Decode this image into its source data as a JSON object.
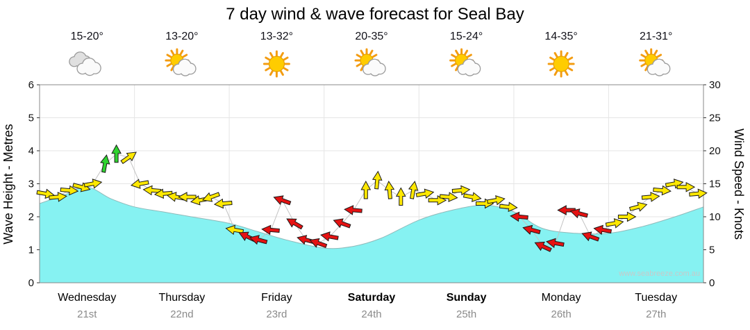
{
  "title": "7 day wind & wave forecast for Seal Bay",
  "watermark": "www.seabreeze.com.au",
  "left_axis": {
    "label": "Wave Height - Metres",
    "min": 0,
    "max": 6,
    "ticks": [
      0,
      1,
      2,
      3,
      4,
      5,
      6
    ]
  },
  "right_axis": {
    "label": "Wind Speed - Knots",
    "min": 0,
    "max": 30,
    "ticks": [
      0,
      5,
      10,
      15,
      20,
      25,
      30
    ]
  },
  "days": [
    {
      "name": "Wednesday",
      "date": "21st",
      "temp": "15-20°",
      "icon": "cloudy",
      "bold": false
    },
    {
      "name": "Thursday",
      "date": "22nd",
      "temp": "13-20°",
      "icon": "partly",
      "bold": false
    },
    {
      "name": "Friday",
      "date": "23rd",
      "temp": "13-32°",
      "icon": "sunny",
      "bold": false
    },
    {
      "name": "Saturday",
      "date": "24th",
      "temp": "20-35°",
      "icon": "partly",
      "bold": true
    },
    {
      "name": "Sunday",
      "date": "25th",
      "temp": "15-24°",
      "icon": "partly",
      "bold": true
    },
    {
      "name": "Monday",
      "date": "26th",
      "temp": "14-35°",
      "icon": "sunny",
      "bold": false
    },
    {
      "name": "Tuesday",
      "date": "27th",
      "temp": "21-31°",
      "icon": "partly",
      "bold": false
    }
  ],
  "chart_data": {
    "type": "area",
    "title": "7 day wind & wave forecast for Seal Bay",
    "x_axis": {
      "unit": "days",
      "range": [
        0,
        7
      ],
      "day_labels": [
        "Wednesday 21st",
        "Thursday 22nd",
        "Friday 23rd",
        "Saturday 24th",
        "Sunday 25th",
        "Monday 26th",
        "Tuesday 27th"
      ]
    },
    "wave_height_m": {
      "name": "Wave Height (metres)",
      "ylim": [
        0,
        6
      ],
      "x": [
        0,
        0.25,
        0.5,
        0.75,
        1,
        1.3,
        1.6,
        2,
        2.3,
        2.6,
        3,
        3.3,
        3.6,
        4,
        4.35,
        4.7,
        5,
        5.3,
        5.65,
        6,
        6.35,
        6.7,
        7
      ],
      "values": [
        2.4,
        2.65,
        2.9,
        2.55,
        2.3,
        2.15,
        2.0,
        1.8,
        1.55,
        1.3,
        1.05,
        1.1,
        1.35,
        1.9,
        2.2,
        2.35,
        2.15,
        1.65,
        1.5,
        1.5,
        1.7,
        2.0,
        2.3
      ]
    },
    "wind_knots": {
      "name": "Wind Speed (knots)",
      "ylim": [
        0,
        30
      ],
      "arrow_color_key": {
        "y": "yellow",
        "g": "green",
        "r": "red"
      },
      "arrows": [
        {
          "f": 0.06,
          "k": 13.5,
          "c": "y",
          "a": 10
        },
        {
          "f": 0.19,
          "k": 13,
          "c": "y",
          "a": -5
        },
        {
          "f": 0.31,
          "k": 14,
          "c": "y",
          "a": 5
        },
        {
          "f": 0.44,
          "k": 14.5,
          "c": "y",
          "a": 15
        },
        {
          "f": 0.56,
          "k": 15,
          "c": "y",
          "a": -10
        },
        {
          "f": 0.69,
          "k": 18,
          "c": "g",
          "a": -80
        },
        {
          "f": 0.81,
          "k": 19.5,
          "c": "g",
          "a": -90
        },
        {
          "f": 0.94,
          "k": 19,
          "c": "y",
          "a": -35
        },
        {
          "f": 1.06,
          "k": 15,
          "c": "y",
          "a": 170
        },
        {
          "f": 1.19,
          "k": 14,
          "c": "y",
          "a": 185
        },
        {
          "f": 1.31,
          "k": 13.5,
          "c": "y",
          "a": 175
        },
        {
          "f": 1.44,
          "k": 13,
          "c": "y",
          "a": 190
        },
        {
          "f": 1.56,
          "k": 13,
          "c": "y",
          "a": 180
        },
        {
          "f": 1.69,
          "k": 12.5,
          "c": "y",
          "a": 170
        },
        {
          "f": 1.81,
          "k": 13,
          "c": "y",
          "a": 160
        },
        {
          "f": 1.94,
          "k": 12,
          "c": "y",
          "a": 175
        },
        {
          "f": 2.06,
          "k": 8,
          "c": "y",
          "a": 190
        },
        {
          "f": 2.19,
          "k": 7,
          "c": "r",
          "a": 205
        },
        {
          "f": 2.31,
          "k": 6.5,
          "c": "r",
          "a": 195
        },
        {
          "f": 2.44,
          "k": 8,
          "c": "r",
          "a": 185
        },
        {
          "f": 2.56,
          "k": 12.5,
          "c": "r",
          "a": 200
        },
        {
          "f": 2.69,
          "k": 9,
          "c": "r",
          "a": 210
        },
        {
          "f": 2.81,
          "k": 6.5,
          "c": "r",
          "a": 195
        },
        {
          "f": 2.94,
          "k": 6,
          "c": "r",
          "a": 200
        },
        {
          "f": 3.06,
          "k": 7,
          "c": "r",
          "a": 190
        },
        {
          "f": 3.19,
          "k": 9,
          "c": "r",
          "a": 200
        },
        {
          "f": 3.31,
          "k": 11,
          "c": "r",
          "a": 185
        },
        {
          "f": 3.44,
          "k": 14,
          "c": "y",
          "a": -90
        },
        {
          "f": 3.56,
          "k": 15.5,
          "c": "y",
          "a": -85
        },
        {
          "f": 3.69,
          "k": 14,
          "c": "y",
          "a": -95
        },
        {
          "f": 3.81,
          "k": 13,
          "c": "y",
          "a": -90
        },
        {
          "f": 3.94,
          "k": 14,
          "c": "y",
          "a": -80
        },
        {
          "f": 4.06,
          "k": 13.5,
          "c": "y",
          "a": -10
        },
        {
          "f": 4.19,
          "k": 12.5,
          "c": "y",
          "a": 0
        },
        {
          "f": 4.31,
          "k": 13,
          "c": "y",
          "a": 5
        },
        {
          "f": 4.44,
          "k": 14,
          "c": "y",
          "a": -5
        },
        {
          "f": 4.56,
          "k": 13,
          "c": "y",
          "a": 10
        },
        {
          "f": 4.69,
          "k": 12,
          "c": "y",
          "a": 0
        },
        {
          "f": 4.81,
          "k": 12.5,
          "c": "y",
          "a": -10
        },
        {
          "f": 4.94,
          "k": 11.5,
          "c": "y",
          "a": 5
        },
        {
          "f": 5.06,
          "k": 10,
          "c": "r",
          "a": 185
        },
        {
          "f": 5.19,
          "k": 8,
          "c": "r",
          "a": 195
        },
        {
          "f": 5.31,
          "k": 5.5,
          "c": "r",
          "a": 205
        },
        {
          "f": 5.44,
          "k": 6,
          "c": "r",
          "a": 190
        },
        {
          "f": 5.56,
          "k": 11,
          "c": "r",
          "a": 180
        },
        {
          "f": 5.69,
          "k": 10.5,
          "c": "r",
          "a": 195
        },
        {
          "f": 5.81,
          "k": 7,
          "c": "r",
          "a": 200
        },
        {
          "f": 5.94,
          "k": 8,
          "c": "r",
          "a": 190
        },
        {
          "f": 6.06,
          "k": 9,
          "c": "y",
          "a": -10
        },
        {
          "f": 6.19,
          "k": 10,
          "c": "y",
          "a": 0
        },
        {
          "f": 6.31,
          "k": 11.5,
          "c": "y",
          "a": -15
        },
        {
          "f": 6.44,
          "k": 13,
          "c": "y",
          "a": -5
        },
        {
          "f": 6.56,
          "k": 14,
          "c": "y",
          "a": 5
        },
        {
          "f": 6.69,
          "k": 15,
          "c": "y",
          "a": -10
        },
        {
          "f": 6.81,
          "k": 14.5,
          "c": "y",
          "a": 0
        },
        {
          "f": 6.94,
          "k": 13.5,
          "c": "y",
          "a": -5
        }
      ]
    },
    "colors": {
      "wave_fill": "#86F2F2",
      "wave_edge": "#8FBABA",
      "arrow_y": "#FFE800",
      "arrow_g": "#2FD32F",
      "arrow_r": "#E51212",
      "grid": "#e5e5e5",
      "border": "#888888",
      "connector": "#c2c2c2"
    }
  }
}
